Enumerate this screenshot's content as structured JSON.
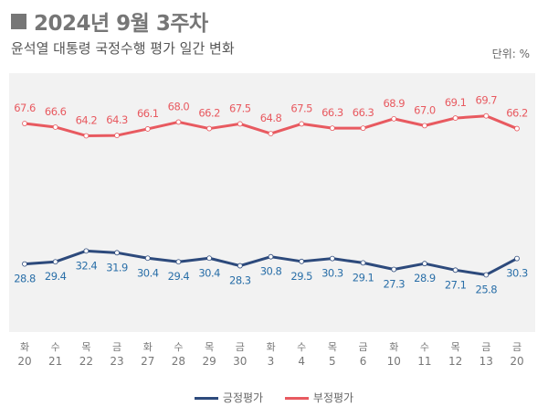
{
  "header": {
    "title": "2024년 9월 3주차",
    "subtitle": "윤석열 대통령 국정수행 평가 일간 변화",
    "unit": "단위: %"
  },
  "chart_data": {
    "type": "line",
    "categories": [
      {
        "day": "화",
        "date": "20"
      },
      {
        "day": "수",
        "date": "21"
      },
      {
        "day": "목",
        "date": "22"
      },
      {
        "day": "금",
        "date": "23"
      },
      {
        "day": "화",
        "date": "27"
      },
      {
        "day": "수",
        "date": "28"
      },
      {
        "day": "목",
        "date": "29"
      },
      {
        "day": "금",
        "date": "30"
      },
      {
        "day": "화",
        "date": "3"
      },
      {
        "day": "수",
        "date": "4"
      },
      {
        "day": "목",
        "date": "5"
      },
      {
        "day": "금",
        "date": "6"
      },
      {
        "day": "화",
        "date": "10"
      },
      {
        "day": "수",
        "date": "11"
      },
      {
        "day": "목",
        "date": "12"
      },
      {
        "day": "금",
        "date": "13"
      },
      {
        "day": "금",
        "date": "20"
      }
    ],
    "series": [
      {
        "name": "긍정평가",
        "color": "#2d4a7c",
        "label_position": "below",
        "values": [
          28.8,
          29.4,
          32.4,
          31.9,
          30.4,
          29.4,
          30.4,
          28.3,
          30.8,
          29.5,
          30.3,
          29.1,
          27.3,
          28.9,
          27.1,
          25.8,
          30.3
        ]
      },
      {
        "name": "부정평가",
        "color": "#e85a60",
        "label_position": "above",
        "values": [
          67.6,
          66.6,
          64.2,
          64.3,
          66.1,
          68.0,
          66.2,
          67.5,
          64.8,
          67.5,
          66.3,
          66.3,
          68.9,
          67.0,
          69.1,
          69.7,
          66.2
        ]
      }
    ],
    "ylim": [
      10,
      81.5
    ],
    "grid": false,
    "legend": "bottom-center",
    "plot_background": "#f2f2f2"
  }
}
